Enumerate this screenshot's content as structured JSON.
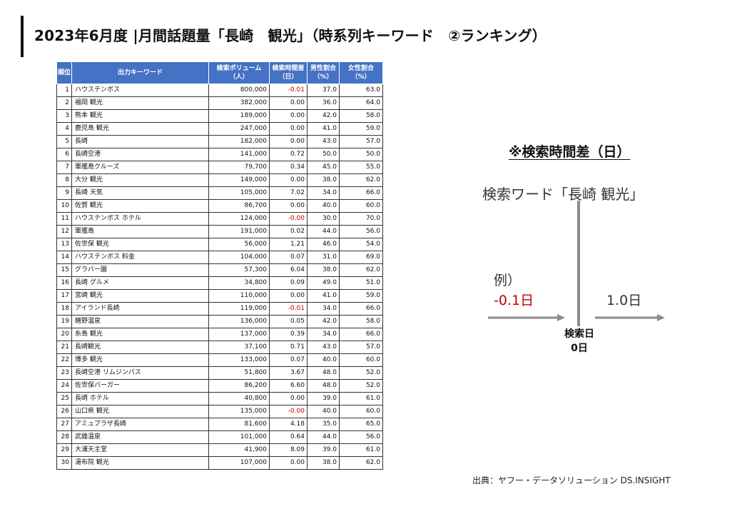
{
  "title": "2023年6月度 |月間話題量「長崎　観光」（時系列キーワード　②ランキング）",
  "table": {
    "headers": {
      "rank": "順位",
      "keyword": "出力キーワード",
      "volume_1": "検索ボリューム",
      "volume_2": "（人）",
      "timediff_1": "検索時間差",
      "timediff_2": "（日）",
      "male_1": "男性割合",
      "male_2": "（%）",
      "female_1": "女性割合",
      "female_2": "（%）"
    },
    "rows": [
      {
        "rank": "1",
        "keyword": "ハウステンボス",
        "volume": "800,000",
        "diff": "-0.01",
        "male": "37.0",
        "female": "63.0"
      },
      {
        "rank": "2",
        "keyword": "福岡 観光",
        "volume": "382,000",
        "diff": "0.00",
        "male": "36.0",
        "female": "64.0"
      },
      {
        "rank": "3",
        "keyword": "熊本 観光",
        "volume": "189,000",
        "diff": "0.00",
        "male": "42.0",
        "female": "58.0"
      },
      {
        "rank": "4",
        "keyword": "鹿児島 観光",
        "volume": "247,000",
        "diff": "0.00",
        "male": "41.0",
        "female": "59.0"
      },
      {
        "rank": "5",
        "keyword": "長崎",
        "volume": "182,000",
        "diff": "0.00",
        "male": "43.0",
        "female": "57.0"
      },
      {
        "rank": "6",
        "keyword": "長崎空港",
        "volume": "141,000",
        "diff": "0.72",
        "male": "50.0",
        "female": "50.0"
      },
      {
        "rank": "7",
        "keyword": "軍艦島クルーズ",
        "volume": "79,700",
        "diff": "0.34",
        "male": "45.0",
        "female": "55.0"
      },
      {
        "rank": "8",
        "keyword": "大分 観光",
        "volume": "149,000",
        "diff": "0.00",
        "male": "38.0",
        "female": "62.0"
      },
      {
        "rank": "9",
        "keyword": "長崎 天気",
        "volume": "105,000",
        "diff": "7.02",
        "male": "34.0",
        "female": "66.0"
      },
      {
        "rank": "10",
        "keyword": "佐賀 観光",
        "volume": "86,700",
        "diff": "0.00",
        "male": "40.0",
        "female": "60.0"
      },
      {
        "rank": "11",
        "keyword": "ハウステンボス ホテル",
        "volume": "124,000",
        "diff": "-0.00",
        "male": "30.0",
        "female": "70.0"
      },
      {
        "rank": "12",
        "keyword": "軍艦島",
        "volume": "191,000",
        "diff": "0.02",
        "male": "44.0",
        "female": "56.0"
      },
      {
        "rank": "13",
        "keyword": "佐世保 観光",
        "volume": "56,000",
        "diff": "1.21",
        "male": "46.0",
        "female": "54.0"
      },
      {
        "rank": "14",
        "keyword": "ハウステンボス 料金",
        "volume": "104,000",
        "diff": "0.07",
        "male": "31.0",
        "female": "69.0"
      },
      {
        "rank": "15",
        "keyword": "グラバー園",
        "volume": "57,300",
        "diff": "6.04",
        "male": "38.0",
        "female": "62.0"
      },
      {
        "rank": "16",
        "keyword": "長崎 グルメ",
        "volume": "34,800",
        "diff": "0.09",
        "male": "49.0",
        "female": "51.0"
      },
      {
        "rank": "17",
        "keyword": "宮崎 観光",
        "volume": "110,000",
        "diff": "0.00",
        "male": "41.0",
        "female": "59.0"
      },
      {
        "rank": "18",
        "keyword": "アイランド長崎",
        "volume": "119,000",
        "diff": "-0.01",
        "male": "34.0",
        "female": "66.0"
      },
      {
        "rank": "19",
        "keyword": "嬉野温泉",
        "volume": "136,000",
        "diff": "0.05",
        "male": "42.0",
        "female": "58.0"
      },
      {
        "rank": "20",
        "keyword": "糸島 観光",
        "volume": "137,000",
        "diff": "0.39",
        "male": "34.0",
        "female": "66.0"
      },
      {
        "rank": "21",
        "keyword": "長崎観光",
        "volume": "37,100",
        "diff": "0.71",
        "male": "43.0",
        "female": "57.0"
      },
      {
        "rank": "22",
        "keyword": "博多 観光",
        "volume": "133,000",
        "diff": "0.07",
        "male": "40.0",
        "female": "60.0"
      },
      {
        "rank": "23",
        "keyword": "長崎空港 リムジンバス",
        "volume": "51,800",
        "diff": "3.67",
        "male": "48.0",
        "female": "52.0"
      },
      {
        "rank": "24",
        "keyword": "佐世保バーガー",
        "volume": "86,200",
        "diff": "6.60",
        "male": "48.0",
        "female": "52.0"
      },
      {
        "rank": "25",
        "keyword": "長崎 ホテル",
        "volume": "40,800",
        "diff": "0.00",
        "male": "39.0",
        "female": "61.0"
      },
      {
        "rank": "26",
        "keyword": "山口県 観光",
        "volume": "135,000",
        "diff": "-0.00",
        "male": "40.0",
        "female": "60.0"
      },
      {
        "rank": "27",
        "keyword": "アミュプラザ長崎",
        "volume": "81,600",
        "diff": "4.18",
        "male": "35.0",
        "female": "65.0"
      },
      {
        "rank": "28",
        "keyword": "武雄温泉",
        "volume": "101,000",
        "diff": "0.64",
        "male": "44.0",
        "female": "56.0"
      },
      {
        "rank": "29",
        "keyword": "大浦天主堂",
        "volume": "41,900",
        "diff": "8.09",
        "male": "39.0",
        "female": "61.0"
      },
      {
        "rank": "30",
        "keyword": "湯布院 観光",
        "volume": "107,000",
        "diff": "0.00",
        "male": "38.0",
        "female": "62.0"
      }
    ]
  },
  "note": {
    "title": "※検索時間差（日）",
    "search_word": "検索ワード「長崎 観光」",
    "example_label": "例）",
    "minus_value": "-0.1日",
    "plus_value": "1.0日",
    "axis_label_1": "検索日",
    "axis_label_2": "0日"
  },
  "source": "出典：ヤフー・データソリューション DS.INSIGHT",
  "colors": {
    "header_bg": "#4472c4",
    "negative": "#c00000",
    "arrow": "#8c8c8c"
  }
}
